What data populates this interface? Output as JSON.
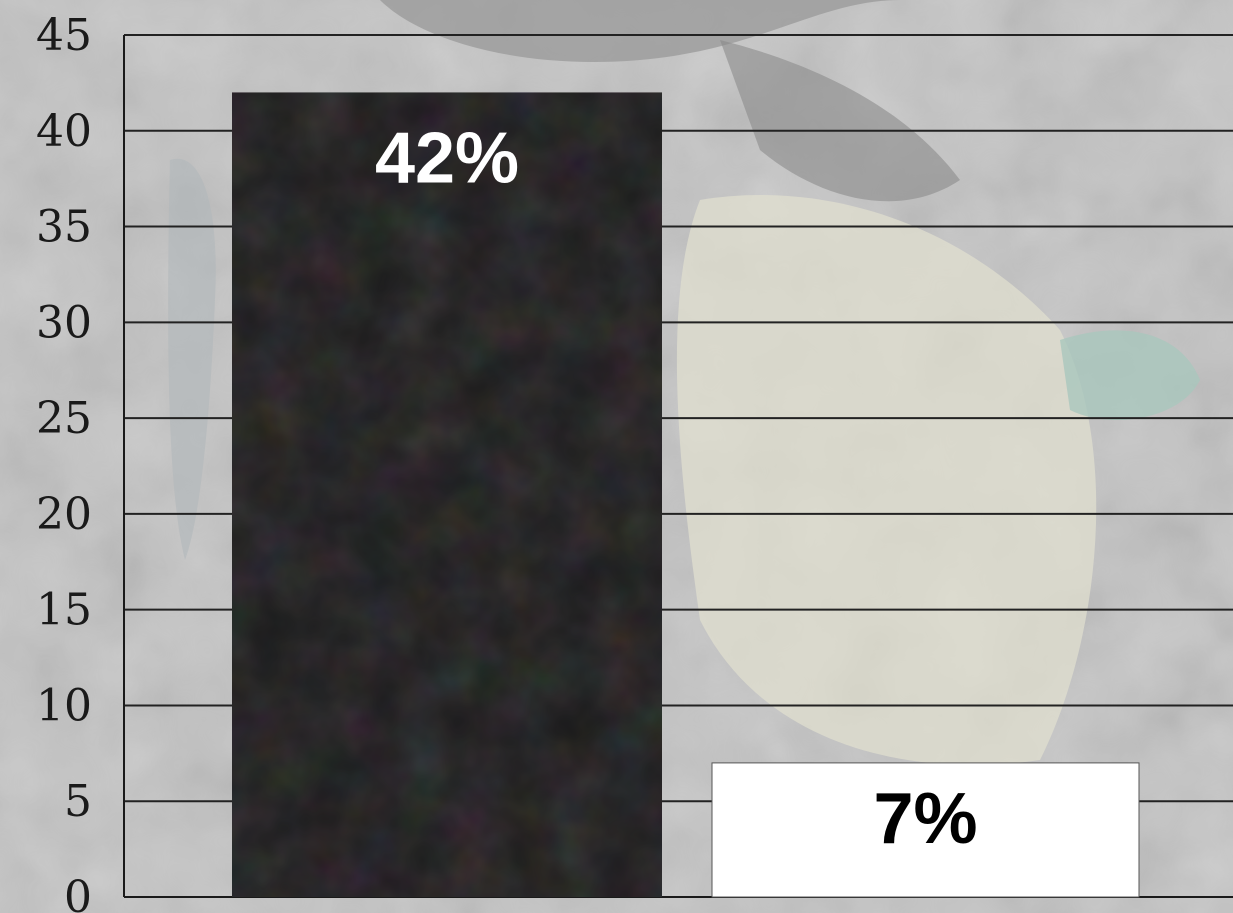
{
  "chart_data": {
    "type": "bar",
    "categories": [
      "",
      ""
    ],
    "values": [
      42,
      7
    ],
    "data_labels": [
      "42%",
      "7%"
    ],
    "bar_colors": [
      "#1b1b1c",
      "#ffffff"
    ],
    "label_colors": [
      "#ffffff",
      "#000000"
    ],
    "title": "",
    "xlabel": "",
    "ylabel": "",
    "ylim": [
      0,
      45
    ],
    "yticks": [
      0,
      5,
      10,
      15,
      20,
      25,
      30,
      35,
      40,
      45
    ],
    "ytick_labels": [
      "0",
      "5",
      "10",
      "15",
      "20",
      "25",
      "30",
      "35",
      "40",
      "45"
    ],
    "grid": true,
    "legend": "none",
    "background": "painted grayscale photo with muted teal and cream accents"
  }
}
